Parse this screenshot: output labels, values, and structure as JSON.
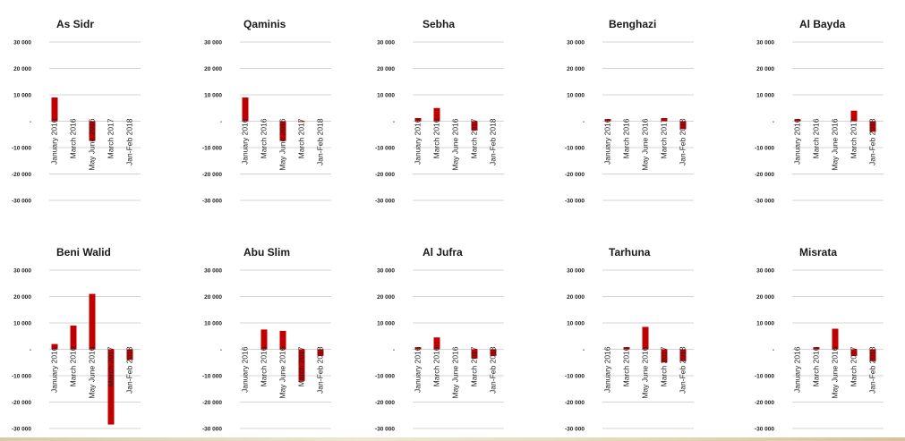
{
  "chart_data": [
    {
      "type": "bar",
      "title": "As Sidr",
      "categories": [
        "January 2016",
        "March 2016",
        "May June 2016",
        "March 2017",
        "Jan-Feb 2018"
      ],
      "values": [
        9000,
        0,
        -7500,
        0,
        0
      ],
      "yticks": [
        "30 000",
        "20 000",
        "10 000",
        "-",
        "-10 000",
        "-20 000",
        "-30 000"
      ],
      "ylim": [
        -30000,
        30000
      ],
      "bar_color": "#c00000"
    },
    {
      "type": "bar",
      "title": "Qaminis",
      "categories": [
        "January 2016",
        "March 2016",
        "May June 2016",
        "March 2017",
        "Jan-Feb 2018"
      ],
      "values": [
        9000,
        0,
        -7500,
        -300,
        0
      ],
      "yticks": [
        "30 000",
        "20 000",
        "10 000",
        "-",
        "-10 000",
        "-20 000",
        "-30 000"
      ],
      "ylim": [
        -30000,
        30000
      ],
      "bar_color": "#c00000"
    },
    {
      "type": "bar",
      "title": "Sebha",
      "categories": [
        "January 2016",
        "March 2016",
        "May June 2016",
        "March 2017",
        "Jan-Feb 2018"
      ],
      "values": [
        1200,
        5000,
        0,
        -3500,
        0
      ],
      "yticks": [
        "30 000",
        "20 000",
        "10 000",
        "-",
        "-10 000",
        "-20 000",
        "-30 000"
      ],
      "ylim": [
        -30000,
        30000
      ],
      "bar_color": "#c00000"
    },
    {
      "type": "bar",
      "title": "Benghazi",
      "categories": [
        "January 2016",
        "March 2016",
        "May June 2016",
        "March 2017",
        "Jan-Feb 2018"
      ],
      "values": [
        800,
        0,
        0,
        1200,
        -3000
      ],
      "yticks": [
        "30 000",
        "20 000",
        "10 000",
        "-",
        "-10 000",
        "-20 000",
        "-30 000"
      ],
      "ylim": [
        -30000,
        30000
      ],
      "bar_color": "#c00000"
    },
    {
      "type": "bar",
      "title": "Al Bayda",
      "categories": [
        "January 2016",
        "March 2016",
        "May June 2016",
        "March 2017",
        "Jan-Feb 2018"
      ],
      "values": [
        800,
        0,
        0,
        4000,
        -4000
      ],
      "yticks": [
        "30 000",
        "20 000",
        "10 000",
        "-",
        "-10 000",
        "-20 000",
        "-30 000"
      ],
      "ylim": [
        -30000,
        30000
      ],
      "bar_color": "#c00000"
    },
    {
      "type": "bar",
      "title": "Beni Walid",
      "categories": [
        "January 2016",
        "March 2016",
        "May June 2016",
        "March 2017",
        "Jan-Feb 2018"
      ],
      "values": [
        2000,
        9000,
        21000,
        -28500,
        -4000
      ],
      "yticks": [
        "30 000",
        "20 000",
        "10 000",
        "-",
        "-10 000",
        "-20 000",
        "-30 000"
      ],
      "ylim": [
        -30000,
        30000
      ],
      "bar_color": "#c00000"
    },
    {
      "type": "bar",
      "title": "Abu Slim",
      "categories": [
        "January 2016",
        "March 2016",
        "May June 2016",
        "March 2017",
        "Jan-Feb 2018"
      ],
      "values": [
        0,
        7500,
        7000,
        -12000,
        -2500
      ],
      "yticks": [
        "30 000",
        "20 000",
        "10 000",
        "-",
        "-10 000",
        "-20 000",
        "-30 000"
      ],
      "ylim": [
        -30000,
        30000
      ],
      "bar_color": "#c00000"
    },
    {
      "type": "bar",
      "title": "Al Jufra",
      "categories": [
        "January 2016",
        "March 2016",
        "May June 2016",
        "March 2017",
        "Jan-Feb 2018"
      ],
      "values": [
        800,
        4500,
        0,
        -3500,
        -2500
      ],
      "yticks": [
        "30 000",
        "20 000",
        "10 000",
        "-",
        "-10 000",
        "-20 000",
        "-30 000"
      ],
      "ylim": [
        -30000,
        30000
      ],
      "bar_color": "#c00000"
    },
    {
      "type": "bar",
      "title": "Tarhuna",
      "categories": [
        "January 2016",
        "March 2016",
        "May June 2016",
        "March 2017",
        "Jan-Feb 2018"
      ],
      "values": [
        0,
        800,
        8500,
        -5000,
        -4500
      ],
      "yticks": [
        "30 000",
        "20 000",
        "10 000",
        "-",
        "-10 000",
        "-20 000",
        "-30 000"
      ],
      "ylim": [
        -30000,
        30000
      ],
      "bar_color": "#c00000"
    },
    {
      "type": "bar",
      "title": "Misrata",
      "categories": [
        "January 2016",
        "March 2016",
        "May June 2016",
        "March 2017",
        "Jan-Feb 2018"
      ],
      "values": [
        0,
        800,
        7800,
        -2500,
        -4500
      ],
      "yticks": [
        "30 000",
        "20 000",
        "10 000",
        "-",
        "-10 000",
        "-20 000",
        "-30 000"
      ],
      "ylim": [
        -30000,
        30000
      ],
      "bar_color": "#c00000"
    }
  ]
}
